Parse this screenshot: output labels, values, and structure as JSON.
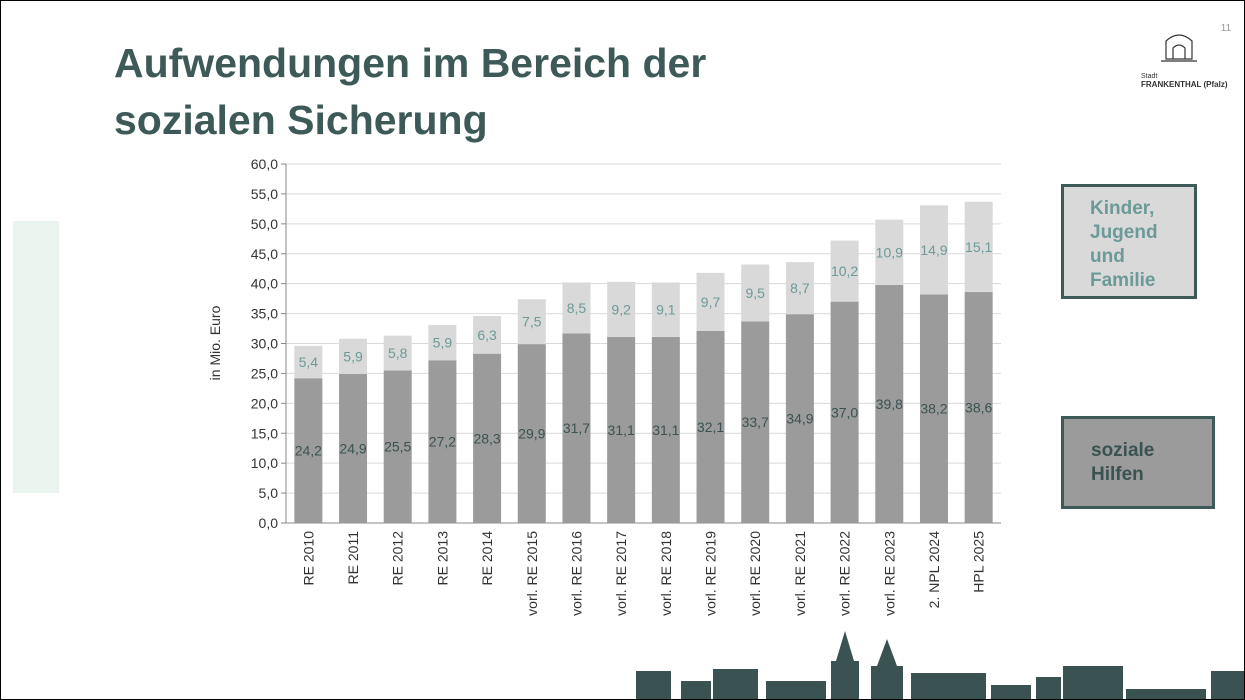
{
  "page_number": "11",
  "logo": {
    "line1": "Stadt",
    "line2": "FRANKENTHAL (Pfalz)"
  },
  "chart_data": {
    "type": "stacked_bar",
    "title": "Aufwendungen im Bereich der sozialen Sicherung",
    "y_label": "in Mio. Euro",
    "categories": [
      "RE 2010",
      "RE 2011",
      "RE 2012",
      "RE 2013",
      "RE 2014",
      "vorl. RE 2015",
      "vorl. RE 2016",
      "vorl. RE 2017",
      "vorl. RE 2018",
      "vorl. RE 2019",
      "vorl. RE 2020",
      "vorl. RE 2021",
      "vorl. RE 2022",
      "vorl. RE 2023",
      "2. NPL 2024",
      "HPL 2025"
    ],
    "series": [
      {
        "name": "soziale Hilfen",
        "color": "#9b9b9b",
        "label_color": "#3a5251",
        "values": [
          24.2,
          24.9,
          25.5,
          27.2,
          28.3,
          29.9,
          31.7,
          31.1,
          31.1,
          32.1,
          33.7,
          34.9,
          37.0,
          39.8,
          38.2,
          38.6
        ],
        "value_labels": [
          "24,2",
          "24,9",
          "25,5",
          "27,2",
          "28,3",
          "29,9",
          "31,7",
          "31,1",
          "31,1",
          "32,1",
          "33,7",
          "34,9",
          "37,0",
          "39,8",
          "38,2",
          "38,6"
        ]
      },
      {
        "name": "Kinder, Jugend und Familie",
        "color": "#d9d9d9",
        "label_color": "#6b9a98",
        "values": [
          5.4,
          5.9,
          5.8,
          5.9,
          6.3,
          7.5,
          8.5,
          9.2,
          9.1,
          9.7,
          9.5,
          8.7,
          10.2,
          10.9,
          14.9,
          15.1
        ],
        "value_labels": [
          "5,4",
          "5,9",
          "5,8",
          "5,9",
          "6,3",
          "7,5",
          "8,5",
          "9,2",
          "9,1",
          "9,7",
          "9,5",
          "8,7",
          "10,2",
          "10,9",
          "14,9",
          "15,1"
        ]
      }
    ],
    "ylim": [
      0,
      60
    ],
    "yticks": [
      {
        "value": 0,
        "label": "0,0"
      },
      {
        "value": 5,
        "label": "5,0"
      },
      {
        "value": 10,
        "label": "10,0"
      },
      {
        "value": 15,
        "label": "15,0"
      },
      {
        "value": 20,
        "label": "20,0"
      },
      {
        "value": 25,
        "label": "25,0"
      },
      {
        "value": 30,
        "label": "30,0"
      },
      {
        "value": 35,
        "label": "35,0"
      },
      {
        "value": 40,
        "label": "40,0"
      },
      {
        "value": 45,
        "label": "45,0"
      },
      {
        "value": 50,
        "label": "50,0"
      },
      {
        "value": 55,
        "label": "55,0"
      },
      {
        "value": 60,
        "label": "60,0"
      }
    ],
    "grid": true
  }
}
